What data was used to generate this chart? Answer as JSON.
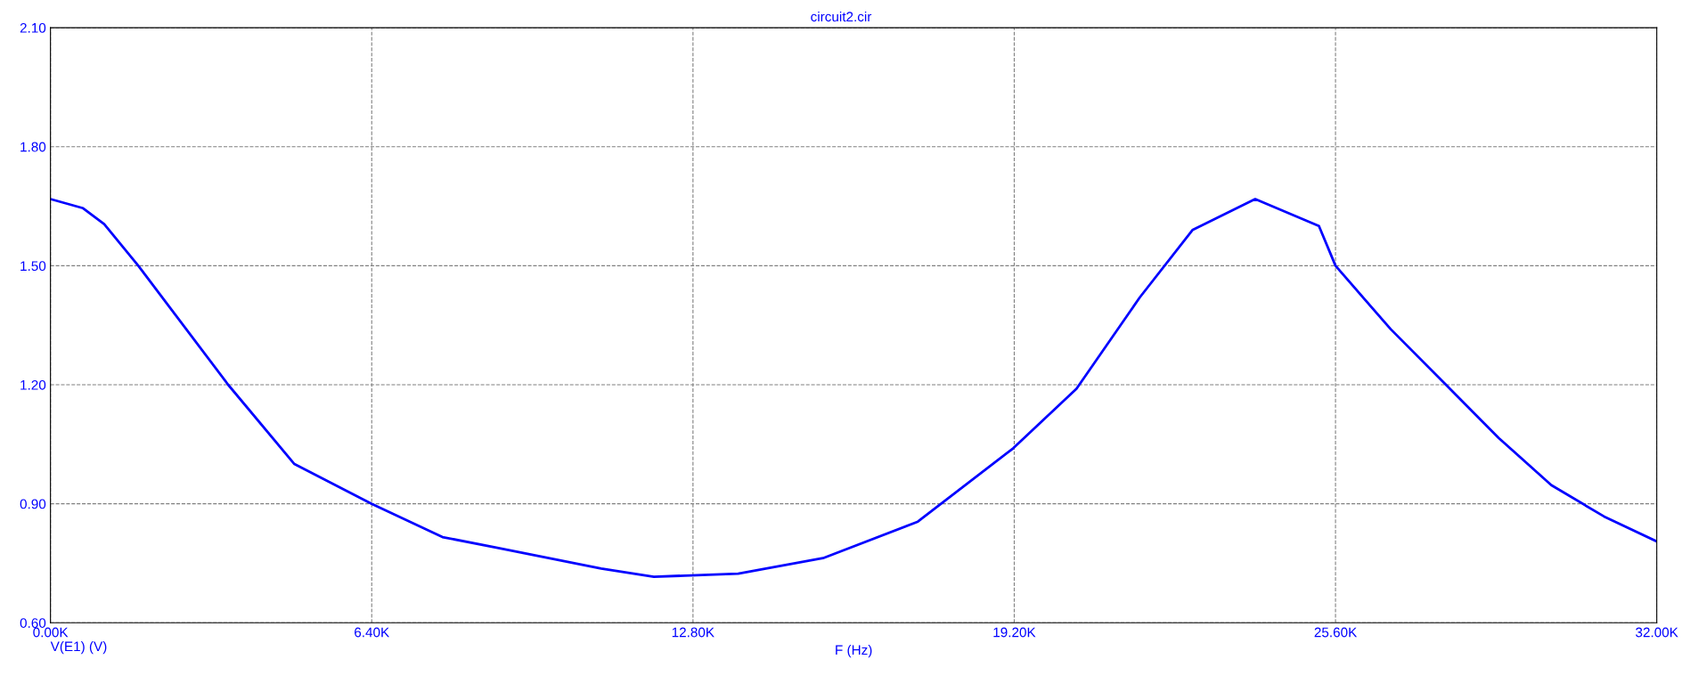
{
  "chart_data": {
    "type": "line",
    "subtitle": "circuit2.cir",
    "xlabel": "F (Hz)",
    "series": [
      {
        "name": "V(E1) (V)",
        "color": "#0000ff",
        "x": [
          0,
          650,
          1070,
          1750,
          3540,
          4860,
          6400,
          7810,
          8860,
          10970,
          12020,
          13700,
          15390,
          17280,
          19180,
          20440,
          21700,
          22750,
          24000,
          25270,
          25600,
          26700,
          27800,
          28850,
          29900,
          30950,
          32000
        ],
        "values": [
          1.668,
          1.645,
          1.605,
          1.5,
          1.2,
          1.0,
          0.9,
          0.816,
          0.79,
          0.737,
          0.716,
          0.724,
          0.763,
          0.855,
          1.04,
          1.19,
          1.42,
          1.59,
          1.668,
          1.6,
          1.5,
          1.34,
          1.2,
          1.066,
          0.947,
          0.868,
          0.805
        ]
      }
    ],
    "xlim": [
      0,
      32000
    ],
    "xticks": [
      {
        "value": 0,
        "label": "0.00K"
      },
      {
        "value": 6400,
        "label": "6.40K"
      },
      {
        "value": 12800,
        "label": "12.80K"
      },
      {
        "value": 19200,
        "label": "19.20K"
      },
      {
        "value": 25600,
        "label": "25.60K"
      },
      {
        "value": 32000,
        "label": "32.00K"
      }
    ],
    "ylim": [
      0.6,
      2.1
    ],
    "yticks": [
      {
        "value": 0.6,
        "label": "0.60"
      },
      {
        "value": 0.9,
        "label": "0.90"
      },
      {
        "value": 1.2,
        "label": "1.20"
      },
      {
        "value": 1.5,
        "label": "1.50"
      },
      {
        "value": 1.8,
        "label": "1.80"
      },
      {
        "value": 2.1,
        "label": "2.10"
      }
    ],
    "grid": true,
    "line_style": "solid"
  }
}
